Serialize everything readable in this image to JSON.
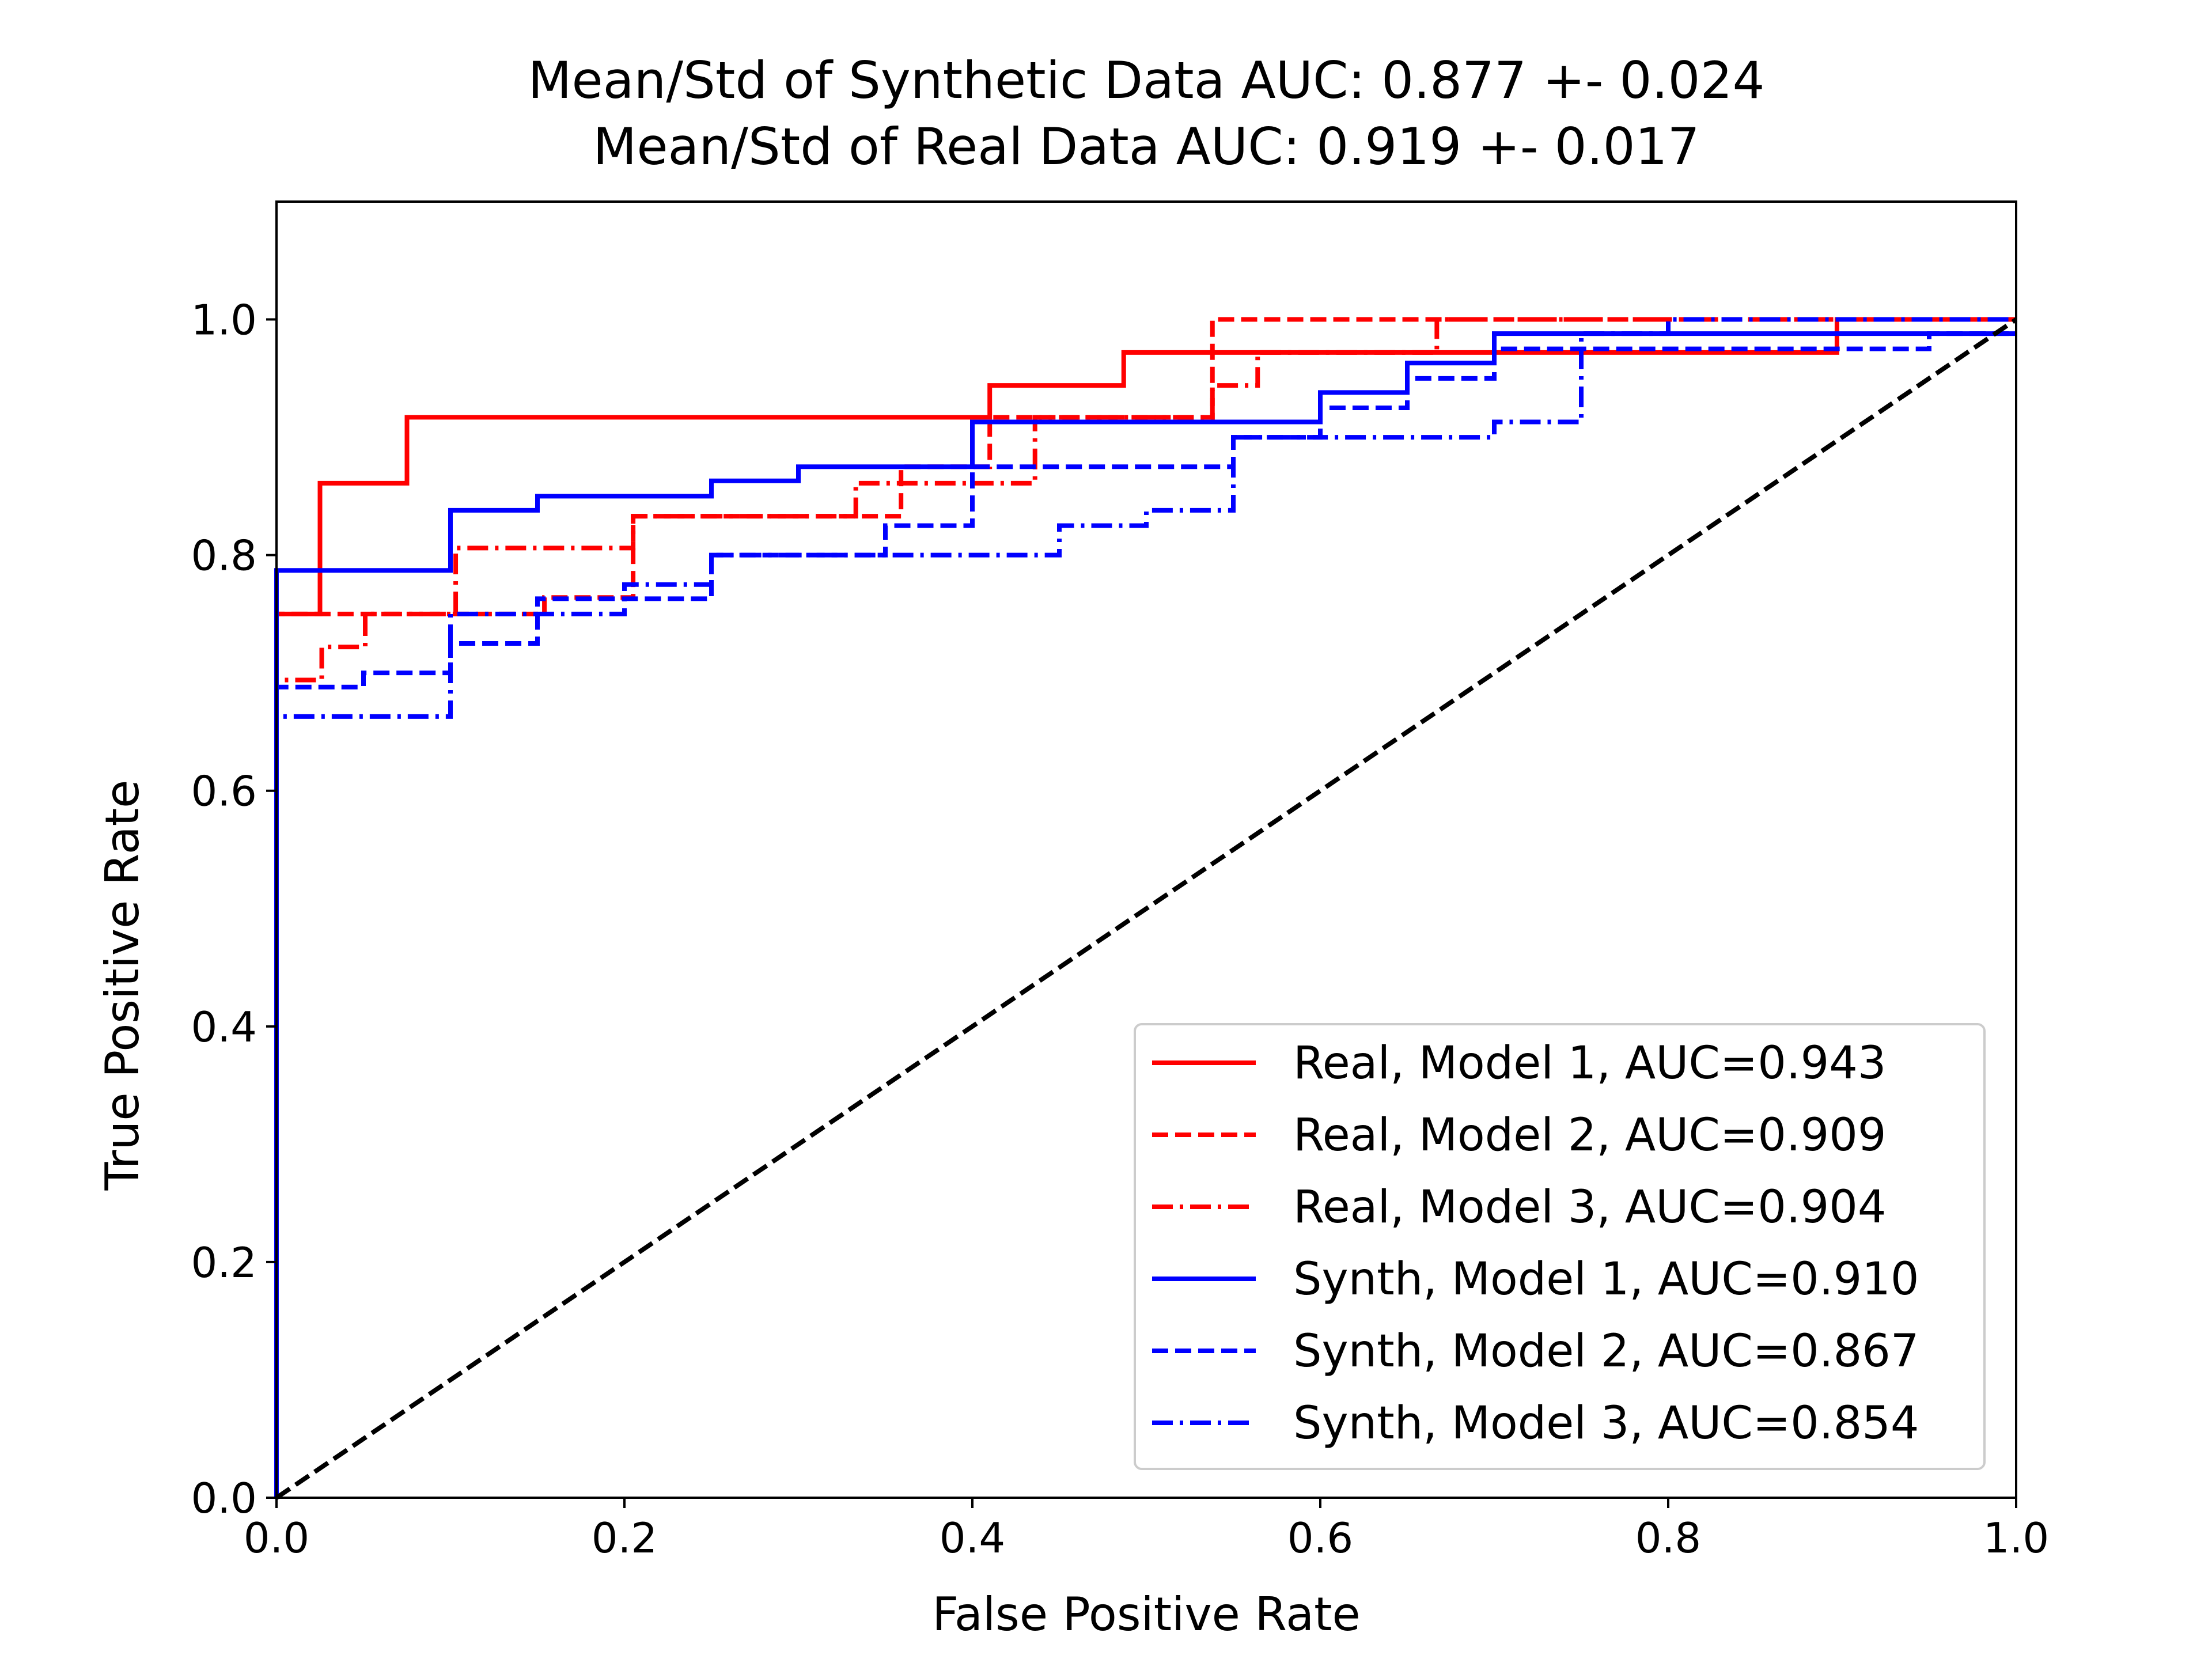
{
  "chart_data": {
    "type": "line",
    "title_lines": [
      "Mean/Std of Synthetic Data AUC: 0.877 +- 0.024",
      "Mean/Std of Real Data AUC: 0.919 +- 0.017"
    ],
    "xlabel": "False Positive Rate",
    "ylabel": "True Positive Rate",
    "xlim": [
      0.0,
      1.0
    ],
    "ylim": [
      0.0,
      1.1
    ],
    "xticks": [
      "0.0",
      "0.2",
      "0.4",
      "0.6",
      "0.8",
      "1.0"
    ],
    "yticks": [
      "0.0",
      "0.2",
      "0.4",
      "0.6",
      "0.8",
      "1.0"
    ],
    "grid": false,
    "legend_position": "lower-right",
    "series": [
      {
        "name": "Real, Model 1, AUC=0.943",
        "color": "#ff0000",
        "style": "solid",
        "points": [
          [
            0,
            0
          ],
          [
            0,
            0.75
          ],
          [
            0.025,
            0.75
          ],
          [
            0.025,
            0.861
          ],
          [
            0.075,
            0.861
          ],
          [
            0.075,
            0.917
          ],
          [
            0.41,
            0.917
          ],
          [
            0.41,
            0.944
          ],
          [
            0.487,
            0.944
          ],
          [
            0.487,
            0.972
          ],
          [
            0.897,
            0.972
          ],
          [
            0.897,
            1.0
          ],
          [
            1.0,
            1.0
          ]
        ]
      },
      {
        "name": "Real, Model 2, AUC=0.909",
        "color": "#ff0000",
        "style": "dashed",
        "points": [
          [
            0,
            0
          ],
          [
            0,
            0.75
          ],
          [
            0.154,
            0.75
          ],
          [
            0.154,
            0.764
          ],
          [
            0.205,
            0.764
          ],
          [
            0.205,
            0.833
          ],
          [
            0.359,
            0.833
          ],
          [
            0.359,
            0.875
          ],
          [
            0.41,
            0.875
          ],
          [
            0.41,
            0.917
          ],
          [
            0.538,
            0.917
          ],
          [
            0.538,
            1.0
          ],
          [
            1.0,
            1.0
          ]
        ]
      },
      {
        "name": "Real, Model 3, AUC=0.904",
        "color": "#ff0000",
        "style": "dashdot",
        "points": [
          [
            0,
            0
          ],
          [
            0,
            0.694
          ],
          [
            0.026,
            0.694
          ],
          [
            0.026,
            0.722
          ],
          [
            0.051,
            0.722
          ],
          [
            0.051,
            0.75
          ],
          [
            0.103,
            0.75
          ],
          [
            0.103,
            0.806
          ],
          [
            0.205,
            0.806
          ],
          [
            0.205,
            0.833
          ],
          [
            0.333,
            0.833
          ],
          [
            0.333,
            0.861
          ],
          [
            0.436,
            0.861
          ],
          [
            0.436,
            0.917
          ],
          [
            0.538,
            0.917
          ],
          [
            0.538,
            0.944
          ],
          [
            0.564,
            0.944
          ],
          [
            0.564,
            0.972
          ],
          [
            0.667,
            0.972
          ],
          [
            0.667,
            1.0
          ],
          [
            1.0,
            1.0
          ]
        ]
      },
      {
        "name": "Synth, Model 1, AUC=0.910",
        "color": "#0000ff",
        "style": "solid",
        "points": [
          [
            0,
            0
          ],
          [
            0,
            0.787
          ],
          [
            0.1,
            0.787
          ],
          [
            0.1,
            0.838
          ],
          [
            0.15,
            0.838
          ],
          [
            0.15,
            0.85
          ],
          [
            0.25,
            0.85
          ],
          [
            0.25,
            0.863
          ],
          [
            0.3,
            0.863
          ],
          [
            0.3,
            0.875
          ],
          [
            0.4,
            0.875
          ],
          [
            0.4,
            0.913
          ],
          [
            0.6,
            0.913
          ],
          [
            0.6,
            0.938
          ],
          [
            0.65,
            0.938
          ],
          [
            0.65,
            0.963
          ],
          [
            0.7,
            0.963
          ],
          [
            0.7,
            0.988
          ],
          [
            1.0,
            0.988
          ]
        ]
      },
      {
        "name": "Synth, Model 2, AUC=0.867",
        "color": "#0000ff",
        "style": "dashed",
        "points": [
          [
            0,
            0
          ],
          [
            0,
            0.688
          ],
          [
            0.05,
            0.688
          ],
          [
            0.05,
            0.7
          ],
          [
            0.1,
            0.7
          ],
          [
            0.1,
            0.725
          ],
          [
            0.15,
            0.725
          ],
          [
            0.15,
            0.763
          ],
          [
            0.25,
            0.763
          ],
          [
            0.25,
            0.8
          ],
          [
            0.35,
            0.8
          ],
          [
            0.35,
            0.825
          ],
          [
            0.4,
            0.825
          ],
          [
            0.4,
            0.875
          ],
          [
            0.55,
            0.875
          ],
          [
            0.55,
            0.9
          ],
          [
            0.6,
            0.9
          ],
          [
            0.6,
            0.925
          ],
          [
            0.65,
            0.925
          ],
          [
            0.65,
            0.95
          ],
          [
            0.7,
            0.95
          ],
          [
            0.7,
            0.975
          ],
          [
            0.95,
            0.975
          ],
          [
            0.95,
            0.988
          ],
          [
            1.0,
            0.988
          ]
        ]
      },
      {
        "name": "Synth, Model 3, AUC=0.854",
        "color": "#0000ff",
        "style": "dashdot",
        "points": [
          [
            0,
            0
          ],
          [
            0,
            0.663
          ],
          [
            0.1,
            0.663
          ],
          [
            0.1,
            0.75
          ],
          [
            0.2,
            0.75
          ],
          [
            0.2,
            0.775
          ],
          [
            0.25,
            0.775
          ],
          [
            0.25,
            0.8
          ],
          [
            0.45,
            0.8
          ],
          [
            0.45,
            0.825
          ],
          [
            0.5,
            0.825
          ],
          [
            0.5,
            0.838
          ],
          [
            0.55,
            0.838
          ],
          [
            0.55,
            0.9
          ],
          [
            0.7,
            0.9
          ],
          [
            0.7,
            0.913
          ],
          [
            0.75,
            0.913
          ],
          [
            0.75,
            0.988
          ],
          [
            0.8,
            0.988
          ],
          [
            0.8,
            1.0
          ],
          [
            1.0,
            1.0
          ]
        ]
      }
    ],
    "reference_line": {
      "color": "#000000",
      "style": "dashed",
      "points": [
        [
          0,
          0
        ],
        [
          1,
          1
        ]
      ]
    }
  }
}
